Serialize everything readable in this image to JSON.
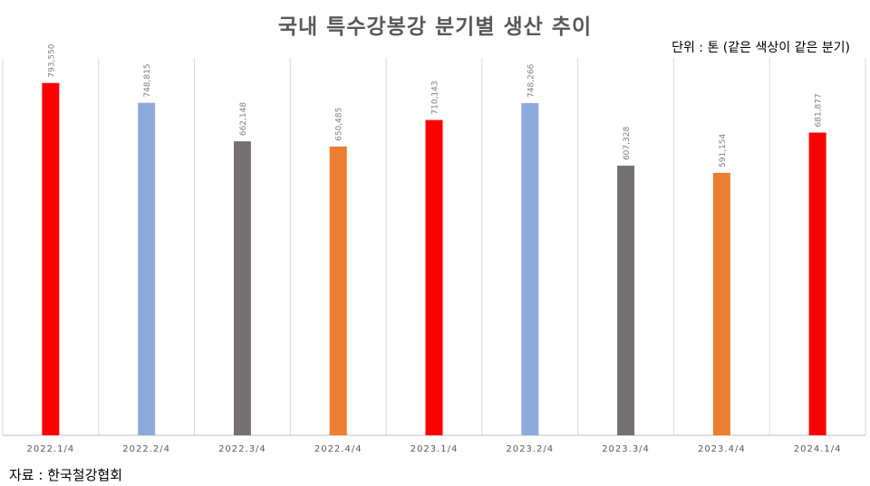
{
  "title": "국내 특수강봉강 분기별 생산 추이",
  "unit_note": "단위 : 톤 (같은 색상이 같은 분기)",
  "source": "자료 : 한국철강협회",
  "colors": {
    "q1": "#ff0000",
    "q2": "#8eaadb",
    "q3": "#767171",
    "q4": "#ed7d31",
    "grid": "#d9d9d9",
    "axis": "#bfbfbf"
  },
  "chart_data": {
    "type": "bar",
    "categories": [
      "2022.1/4",
      "2022.2/4",
      "2022.3/4",
      "2022.4/4",
      "2023.1/4",
      "2023.2/4",
      "2023.3/4",
      "2023.4/4",
      "2024.1/4"
    ],
    "values": [
      793550,
      748815,
      662148,
      650485,
      710143,
      748266,
      607328,
      591154,
      681877
    ],
    "data_labels": [
      "793,550",
      "748,815",
      "662,148",
      "650,485",
      "710,143",
      "748,266",
      "607,328",
      "591,154",
      "681,877"
    ],
    "bar_color_keys": [
      "q1",
      "q2",
      "q3",
      "q4",
      "q1",
      "q2",
      "q3",
      "q4",
      "q1"
    ],
    "ylim": [
      0,
      850000
    ],
    "grid": "vertical",
    "xlabel": "",
    "ylabel": ""
  }
}
